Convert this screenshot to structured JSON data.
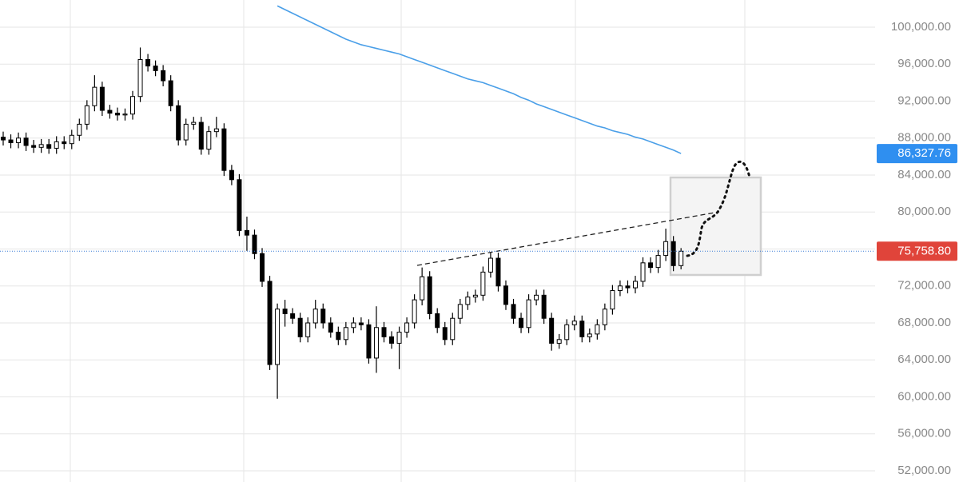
{
  "chart_data": {
    "type": "candlestick",
    "ylim": [
      50789,
      102940
    ],
    "yticks": [
      {
        "value": 52000,
        "label": "52,000.00"
      },
      {
        "value": 56000,
        "label": "56,000.00"
      },
      {
        "value": 60000,
        "label": "60,000.00"
      },
      {
        "value": 64000,
        "label": "64,000.00"
      },
      {
        "value": 68000,
        "label": "68,000.00"
      },
      {
        "value": 72000,
        "label": "72,000.00"
      },
      {
        "value": 76000,
        "label": "76,000.00"
      },
      {
        "value": 80000,
        "label": "80,000.00"
      },
      {
        "value": 84000,
        "label": "84,000.00"
      },
      {
        "value": 88000,
        "label": "88,000.00"
      },
      {
        "value": 92000,
        "label": "92,000.00"
      },
      {
        "value": 96000,
        "label": "96,000.00"
      },
      {
        "value": 100000,
        "label": "100,000.00"
      }
    ],
    "grid": true,
    "up_color": "#ffffff",
    "down_color": "#000000",
    "open": [
      88100,
      87800,
      87500,
      88000,
      87200,
      87000,
      87300,
      86900,
      87600,
      87400,
      88300,
      89500,
      91500,
      93500,
      91000,
      90700,
      90500,
      90600,
      92500,
      96500,
      95800,
      95300,
      94200,
      91500,
      87800,
      89500,
      89700,
      86800,
      88700,
      89000,
      84500,
      83500,
      78000,
      77500,
      75500,
      72500,
      63500,
      69500,
      69000,
      68500,
      66500,
      68000,
      69500,
      68000,
      67000,
      66200,
      67500,
      68000,
      67800,
      64200,
      67500,
      66500,
      65800,
      67000,
      68000,
      70500,
      73000,
      69000,
      67500,
      66200,
      68500,
      70000,
      70800,
      71000,
      73500,
      75000,
      72000,
      70000,
      68500,
      67500,
      70500,
      71000,
      68500,
      65800,
      66200,
      67800,
      68200,
      66500,
      66800,
      67800,
      69500,
      71500,
      72000,
      71800,
      72500,
      74500,
      74000,
      75300,
      76800,
      74200
    ],
    "high": [
      88700,
      88400,
      88600,
      88600,
      87800,
      87900,
      87900,
      88200,
      88200,
      88900,
      90100,
      92100,
      94800,
      94100,
      91600,
      91300,
      91200,
      93100,
      97800,
      97100,
      96400,
      95900,
      94800,
      92100,
      90100,
      90300,
      90300,
      89300,
      90300,
      89600,
      85100,
      84100,
      79500,
      78100,
      76100,
      73100,
      70100,
      70500,
      69600,
      69100,
      68600,
      70500,
      70100,
      68600,
      67600,
      68100,
      68600,
      68600,
      68400,
      69800,
      68100,
      67100,
      67600,
      68600,
      71100,
      74000,
      73600,
      69600,
      68100,
      69100,
      70600,
      71400,
      71600,
      74100,
      75600,
      75600,
      72600,
      70600,
      69100,
      71100,
      71600,
      71600,
      69100,
      66800,
      68400,
      68800,
      68800,
      67400,
      68400,
      70100,
      72100,
      72600,
      72600,
      73100,
      75100,
      75100,
      75900,
      78200,
      77400,
      76100
    ],
    "low": [
      87200,
      86900,
      86900,
      86600,
      86400,
      86400,
      86300,
      86300,
      86800,
      86800,
      87700,
      88900,
      90900,
      90400,
      90100,
      89900,
      89900,
      90000,
      91900,
      95200,
      94700,
      93600,
      90900,
      87200,
      87200,
      88900,
      86200,
      86200,
      88100,
      83900,
      82900,
      77400,
      75800,
      74900,
      71900,
      62900,
      59800,
      67600,
      67900,
      65900,
      65900,
      67400,
      67400,
      66400,
      65600,
      65600,
      66900,
      67200,
      63600,
      62600,
      65900,
      65200,
      63000,
      66400,
      67400,
      69900,
      68400,
      66900,
      65600,
      65600,
      67900,
      69400,
      70200,
      70400,
      72900,
      71400,
      69400,
      67900,
      66900,
      66900,
      69900,
      67900,
      65000,
      65200,
      65600,
      67200,
      65900,
      65900,
      66200,
      67200,
      68900,
      70900,
      71200,
      71200,
      71900,
      73400,
      73400,
      74700,
      73600,
      73800
    ],
    "close": [
      87800,
      87500,
      88000,
      87200,
      87000,
      87300,
      86900,
      87600,
      87400,
      88300,
      89500,
      91500,
      93500,
      91000,
      90700,
      90500,
      90600,
      92500,
      96500,
      95800,
      95300,
      94200,
      91500,
      87800,
      89500,
      89700,
      86800,
      88700,
      89000,
      84500,
      83500,
      78000,
      77500,
      75500,
      72500,
      63500,
      69500,
      69000,
      68500,
      66500,
      68000,
      69500,
      68000,
      67000,
      66200,
      67500,
      68000,
      67800,
      64200,
      67500,
      66500,
      65800,
      67000,
      68000,
      70500,
      73000,
      69000,
      67500,
      66200,
      68500,
      70000,
      70800,
      71000,
      73500,
      75000,
      72000,
      70000,
      68500,
      67500,
      70500,
      71000,
      68500,
      65800,
      66200,
      67800,
      68200,
      66500,
      66800,
      67800,
      69500,
      71500,
      72000,
      71800,
      72500,
      74500,
      74000,
      75300,
      76800,
      74200,
      75758.8
    ],
    "series": [
      {
        "color": "#4a9fe8",
        "values": [
          null,
          null,
          null,
          null,
          null,
          null,
          null,
          null,
          null,
          null,
          null,
          null,
          null,
          null,
          null,
          null,
          null,
          null,
          null,
          null,
          null,
          null,
          null,
          null,
          null,
          null,
          null,
          null,
          null,
          null,
          null,
          null,
          null,
          null,
          null,
          null,
          102300,
          101900,
          101500,
          101100,
          100700,
          100300,
          99900,
          99500,
          99100,
          98700,
          98400,
          98100,
          97900,
          97700,
          97500,
          97300,
          97100,
          96800,
          96500,
          96200,
          95900,
          95600,
          95300,
          95000,
          94700,
          94400,
          94200,
          94000,
          93700,
          93400,
          93100,
          92800,
          92400,
          92100,
          91700,
          91400,
          91100,
          90800,
          90500,
          90200,
          89900,
          89600,
          89300,
          89100,
          88800,
          88600,
          88400,
          88100,
          87900,
          87600,
          87300,
          87000,
          86700,
          86327.76
        ]
      }
    ],
    "price_lines": [
      {
        "value": 86327.76,
        "label": "86,327.76",
        "color": "#2f8ff0",
        "dotted": false
      },
      {
        "value": 75758.8,
        "label": "75,758.80",
        "color": "#e0443a",
        "dotted": true
      }
    ]
  }
}
